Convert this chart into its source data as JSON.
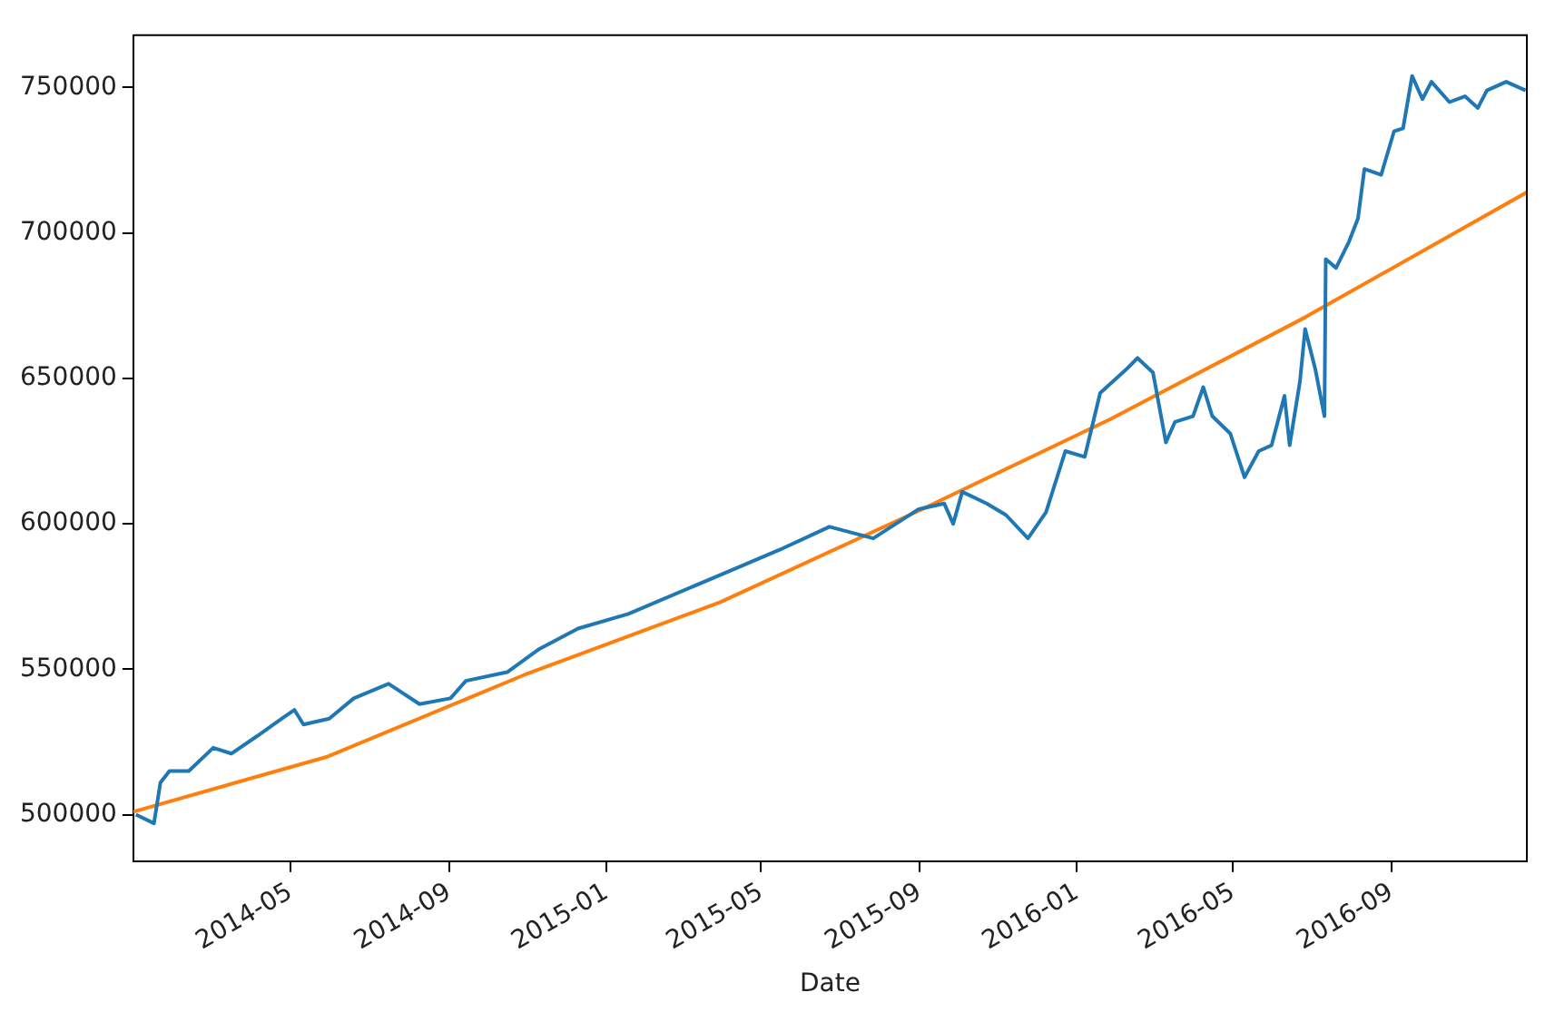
{
  "chart_data": {
    "type": "line",
    "xlabel": "Date",
    "xlim": [
      "2013-12-30",
      "2016-12-15"
    ],
    "ylim": [
      484000,
      768000
    ],
    "xticks": [
      {
        "value": "2014-05-01",
        "label": "2014-05"
      },
      {
        "value": "2014-09-01",
        "label": "2014-09"
      },
      {
        "value": "2015-01-01",
        "label": "2015-01"
      },
      {
        "value": "2015-05-01",
        "label": "2015-05"
      },
      {
        "value": "2015-09-01",
        "label": "2015-09"
      },
      {
        "value": "2016-01-01",
        "label": "2016-01"
      },
      {
        "value": "2016-05-01",
        "label": "2016-05"
      },
      {
        "value": "2016-09-01",
        "label": "2016-09"
      }
    ],
    "yticks": [
      500000,
      550000,
      600000,
      650000,
      700000,
      750000
    ],
    "grid": false,
    "legend": false,
    "marker": "none",
    "line_style": "solid",
    "series": [
      {
        "color": "#1f77b4",
        "x": [
          "2014-01-01",
          "2014-01-15",
          "2014-01-20",
          "2014-01-27",
          "2014-02-11",
          "2014-03-02",
          "2014-03-16",
          "2014-04-05",
          "2014-04-24",
          "2014-05-04",
          "2014-05-11",
          "2014-05-31",
          "2014-06-19",
          "2014-07-16",
          "2014-08-09",
          "2014-09-02",
          "2014-09-14",
          "2014-10-16",
          "2014-11-10",
          "2014-12-10",
          "2015-01-18",
          "2015-03-28",
          "2015-05-15",
          "2015-06-23",
          "2015-07-27",
          "2015-08-31",
          "2015-09-20",
          "2015-09-27",
          "2015-10-04",
          "2015-10-23",
          "2015-11-07",
          "2015-11-24",
          "2015-12-08",
          "2015-12-23",
          "2016-01-07",
          "2016-01-19",
          "2016-02-08",
          "2016-02-17",
          "2016-02-29",
          "2016-03-10",
          "2016-03-17",
          "2016-03-31",
          "2016-04-08",
          "2016-04-15",
          "2016-04-29",
          "2016-05-10",
          "2016-05-21",
          "2016-05-31",
          "2016-06-10",
          "2016-06-14",
          "2016-06-22",
          "2016-06-26",
          "2016-07-04",
          "2016-07-11",
          "2016-07-12",
          "2016-07-20",
          "2016-07-30",
          "2016-08-06",
          "2016-08-11",
          "2016-08-24",
          "2016-09-03",
          "2016-09-10",
          "2016-09-17",
          "2016-09-25",
          "2016-10-02",
          "2016-10-16",
          "2016-10-28",
          "2016-11-07",
          "2016-11-14",
          "2016-11-29",
          "2016-12-14"
        ],
        "values": [
          500000,
          497000,
          511000,
          515000,
          515000,
          523000,
          521000,
          527000,
          533000,
          536000,
          531000,
          533000,
          540000,
          545000,
          538000,
          540000,
          546000,
          549000,
          557000,
          564000,
          569000,
          582000,
          591000,
          599000,
          595000,
          605000,
          607000,
          600000,
          611000,
          607000,
          603000,
          595000,
          604000,
          625000,
          623000,
          645000,
          653000,
          657000,
          652000,
          628000,
          635000,
          637000,
          647000,
          637000,
          631000,
          616000,
          625000,
          627000,
          644000,
          627000,
          649000,
          667000,
          653000,
          637000,
          691000,
          688000,
          697000,
          705000,
          722000,
          720000,
          735000,
          736000,
          754000,
          746000,
          752000,
          745000,
          747000,
          743000,
          749000,
          752000,
          749000
        ]
      },
      {
        "color": "#ff7f0e",
        "x": [
          "2013-12-30",
          "2014-05-30",
          "2014-10-29",
          "2015-03-30",
          "2015-08-29",
          "2016-01-27",
          "2016-06-26",
          "2016-12-15"
        ],
        "values": [
          501000,
          520000,
          548000,
          573000,
          604000,
          636000,
          671000,
          714000
        ]
      }
    ]
  }
}
